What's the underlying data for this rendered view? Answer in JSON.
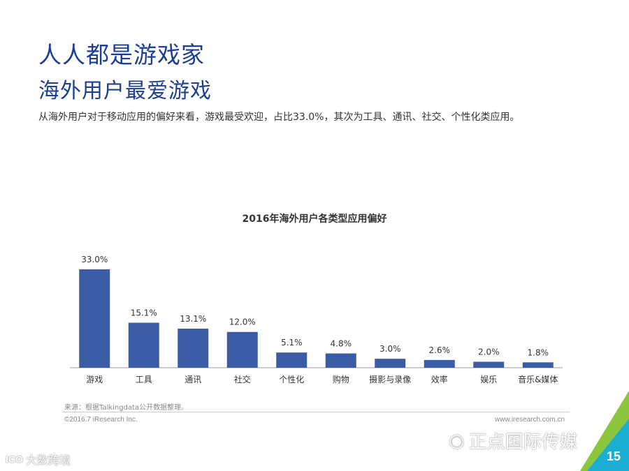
{
  "title": "人人都是游戏家",
  "subtitle": "海外用户最爱游戏",
  "description": "从海外用户对于移动应用的偏好来看，游戏最受欢迎，占比33.0%，其次为工具、通讯、社交、个性化类应用。",
  "footer": {
    "source": "来源：根据Talkingdata公开数据整理。",
    "copyright": "©2016.7 iResearch Inc.",
    "site": "www.iresearch.com.cn",
    "page_number": "15"
  },
  "watermarks": {
    "right": "正点国际传媒",
    "left_logo": "ICO",
    "left": "大数跨境"
  },
  "colors": {
    "bar": "#3c5ba5",
    "title": "#1c3f93",
    "corner_green": "#8cc63f",
    "corner_teal": "#1aaed2"
  },
  "chart_data": {
    "type": "bar",
    "title": "2016年海外用户各类型应用偏好",
    "categories": [
      "游戏",
      "工具",
      "通讯",
      "社交",
      "个性化",
      "购物",
      "摄影与录像",
      "效率",
      "娱乐",
      "音乐&媒体"
    ],
    "values": [
      33.0,
      15.1,
      13.1,
      12.0,
      5.1,
      4.8,
      3.0,
      2.6,
      2.0,
      1.8
    ],
    "data_labels": [
      "33.0%",
      "15.1%",
      "13.1%",
      "12.0%",
      "5.1%",
      "4.8%",
      "3.0%",
      "2.6%",
      "2.0%",
      "1.8%"
    ],
    "unit": "%",
    "ylim": [
      0,
      33.0
    ],
    "grid": false,
    "legend": "none"
  }
}
